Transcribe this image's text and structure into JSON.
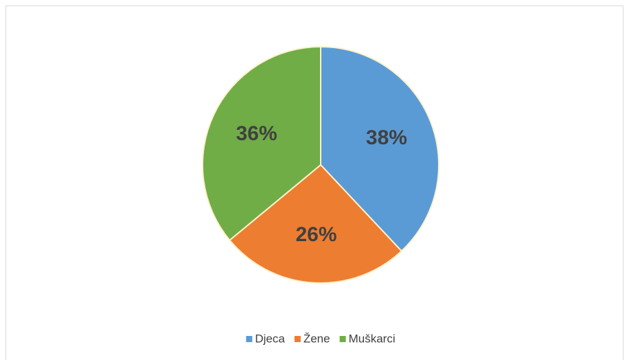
{
  "chart_data": {
    "type": "pie",
    "categories": [
      "Djeca",
      "Žene",
      "Muškarci"
    ],
    "values": [
      38,
      26,
      36
    ],
    "value_labels": [
      "38%",
      "26%",
      "36%"
    ],
    "colors": [
      "#5b9bd5",
      "#ed7d31",
      "#70ad47"
    ],
    "legend": "bottom"
  }
}
